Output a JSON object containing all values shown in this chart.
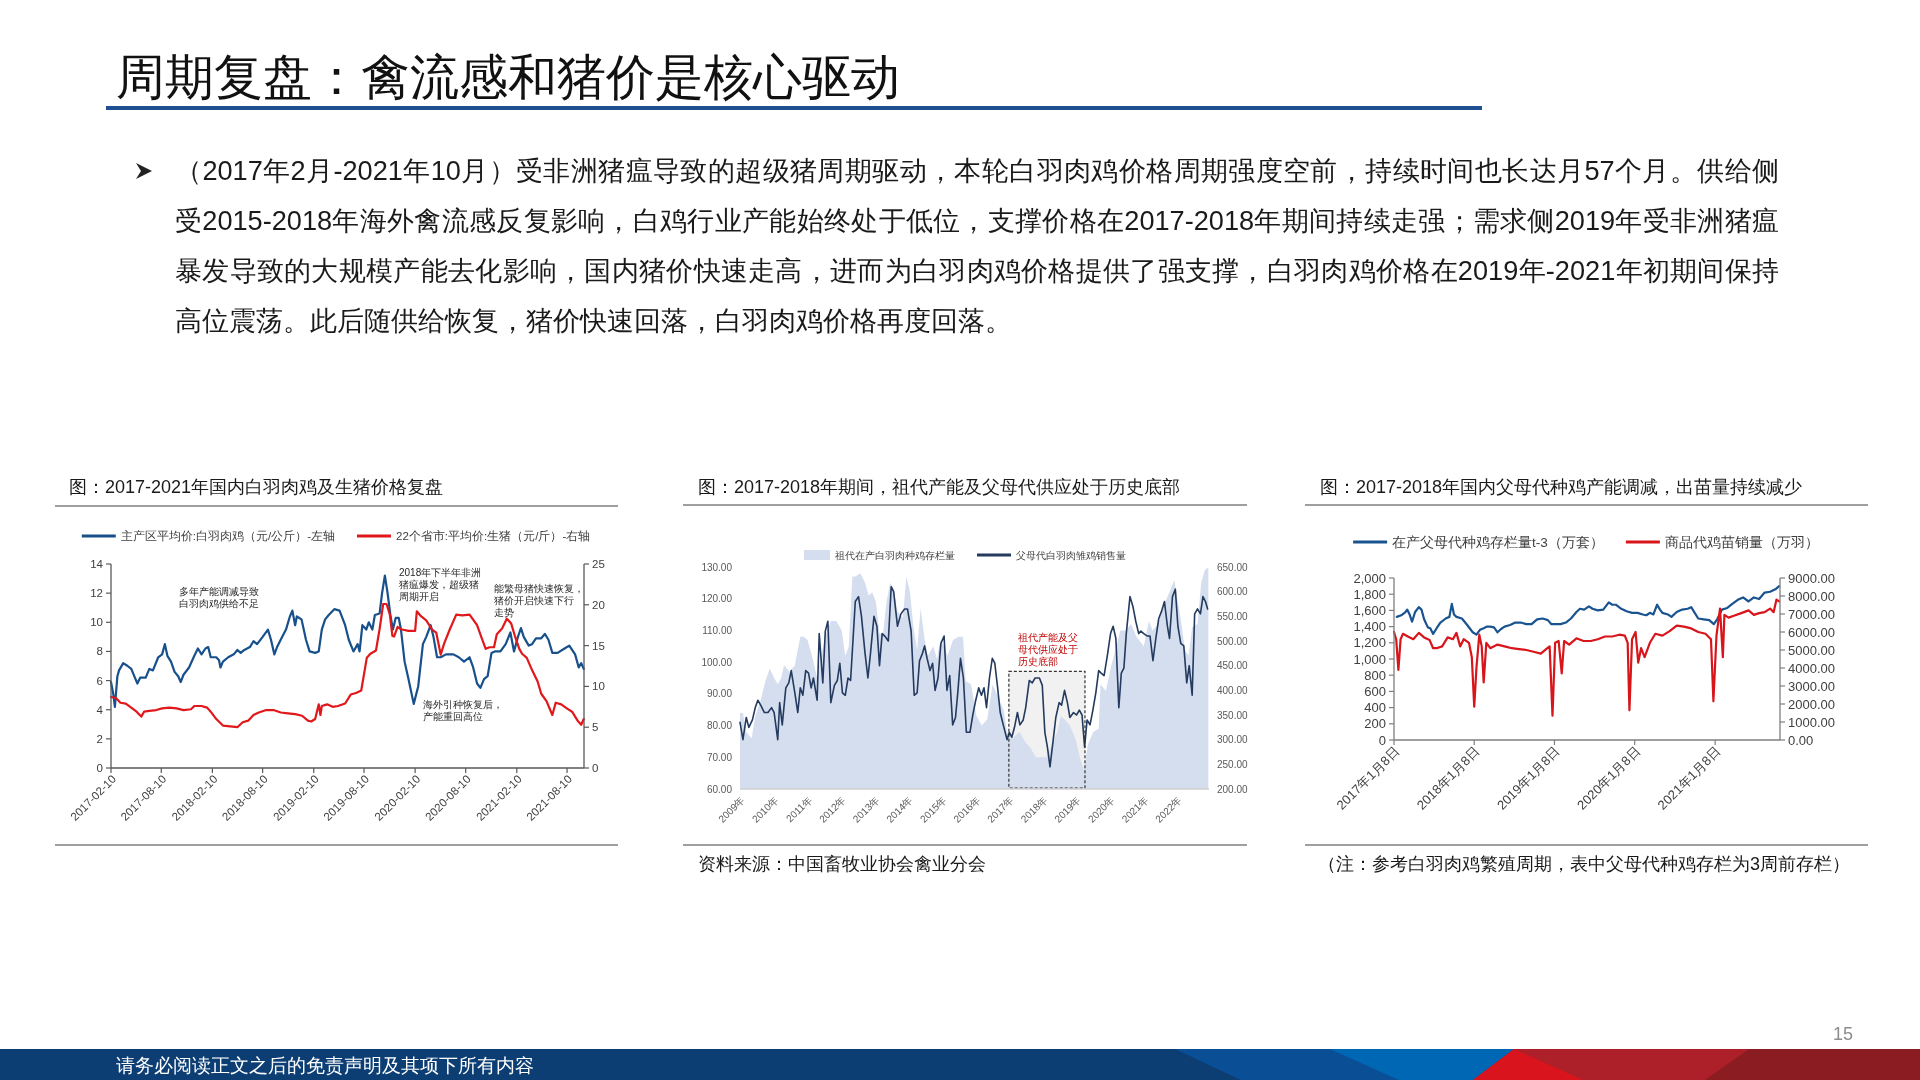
{
  "chart_data": [
    {
      "type": "other",
      "title": "周期复盘：禽流感和猪价是核心驱动",
      "annotations": [
        "（2017年2月-2021年10月）受非洲猪瘟导致的超级猪周期驱动，本轮白羽肉鸡价格周期强度空前，持续时间也长达月57个月。供给侧受2015-2018年海外禽流感反复影响，白鸡行业产能始终处于低位，支撑价格在2017-2018年期间持续走强；需求侧2019年受非洲猪瘟暴发导致的大规模产能去化影响，国内猪价快速走高，进而为白羽肉鸡价格提供了强支撑，白羽肉鸡价格在2019年-2021年初期间保持高位震荡。此后随供给恢复，猪价快速回落，白羽肉鸡价格再度回落。",
        "请务必阅读正文之后的免责声明及其项下所有内容",
        "15"
      ]
    },
    {
      "type": "line",
      "title": "图：2017-2021年国内白羽肉鸡及生猪价格复盘",
      "legend": "top",
      "xlim": [
        "2017-02-10",
        "2021-10-10"
      ],
      "xticks": [
        "2017-02-10",
        "2017-08-10",
        "2018-02-10",
        "2018-08-10",
        "2019-02-10",
        "2019-08-10",
        "2020-02-10",
        "2020-08-10",
        "2021-02-10",
        "2021-08-10"
      ],
      "ylim": [
        0,
        14
      ],
      "yticks": [
        0,
        2,
        4,
        6,
        8,
        10,
        12,
        14
      ],
      "y2lim": [
        0,
        25
      ],
      "y2ticks": [
        0,
        5,
        10,
        15,
        20,
        25
      ],
      "annotations": [
        "多年产能调减导致白羽肉鸡供给不足",
        "2018年下半年非洲猪瘟爆发，超级猪周期开启",
        "能繁母猪快速恢复，猪价开启快速下行走势",
        "海外引种恢复后，产能重回高位"
      ],
      "series": [
        {
          "name": "主产区平均价:白羽肉鸡（元/公斤）-左轴",
          "color": "#17508b",
          "x": [
            "2017-02-10",
            "2017-02-18",
            "2017-02-24",
            "2017-03-05",
            "2017-03-11",
            "2017-03-26",
            "2017-04-11",
            "2017-04-24",
            "2017-05-07",
            "2017-05-16",
            "2017-05-26",
            "2017-06-15",
            "2017-06-28",
            "2017-07-11",
            "2017-07-30",
            "2017-08-13",
            "2017-08-23",
            "2017-09-01",
            "2017-09-14",
            "2017-09-27",
            "2017-10-10",
            "2017-10-19",
            "2017-10-29",
            "2017-11-18",
            "2017-12-07",
            "2017-12-20",
            "2018-01-02",
            "2018-01-16",
            "2018-01-26",
            "2018-02-04",
            "2018-02-24",
            "2018-03-06",
            "2018-03-11",
            "2018-03-20",
            "2018-04-08",
            "2018-04-28",
            "2018-05-11",
            "2018-05-23",
            "2018-06-05",
            "2018-06-25",
            "2018-07-08",
            "2018-07-21",
            "2018-08-10",
            "2018-08-29",
            "2018-09-09",
            "2018-09-21",
            "2018-10-01",
            "2018-10-14",
            "2018-11-02",
            "2018-11-16",
            "2018-11-25",
            "2018-12-05",
            "2018-12-11",
            "2018-12-28",
            "2019-01-13",
            "2019-01-26",
            "2019-02-15",
            "2019-02-28",
            "2019-03-11",
            "2019-03-23",
            "2019-04-05",
            "2019-04-25",
            "2019-05-14",
            "2019-06-03",
            "2019-06-16",
            "2019-07-03",
            "2019-07-18",
            "2019-07-25",
            "2019-08-04",
            "2019-08-18",
            "2019-08-27",
            "2019-09-09",
            "2019-09-18",
            "2019-10-05",
            "2019-10-14",
            "2019-10-24",
            "2019-11-02",
            "2019-11-13",
            "2019-11-22",
            "2019-12-02",
            "2019-12-13",
            "2019-12-21",
            "2020-01-03",
            "2020-01-17",
            "2020-02-05",
            "2020-02-21",
            "2020-03-09",
            "2020-03-21",
            "2020-04-06",
            "2020-04-16",
            "2020-04-29",
            "2020-05-12",
            "2020-05-31",
            "2020-06-27",
            "2020-07-16",
            "2020-08-04",
            "2020-08-24",
            "2020-09-06",
            "2020-09-20",
            "2020-10-02",
            "2020-10-15",
            "2020-10-28",
            "2020-11-11",
            "2020-11-23",
            "2020-12-13",
            "2021-01-01",
            "2021-01-18",
            "2021-01-31",
            "2021-02-14",
            "2021-02-25",
            "2021-03-07",
            "2021-03-25",
            "2021-04-06",
            "2021-04-20",
            "2021-05-09",
            "2021-05-22",
            "2021-06-04",
            "2021-06-18",
            "2021-07-07",
            "2021-08-01",
            "2021-08-18",
            "2021-09-08",
            "2021-09-21",
            "2021-09-30",
            "2021-10-09"
          ],
          "values": [
            5.9,
            5.1,
            4.2,
            6.3,
            6.7,
            7.2,
            7.0,
            6.8,
            6.2,
            5.8,
            6.2,
            6.2,
            6.8,
            6.7,
            7.6,
            7.8,
            8.5,
            7.7,
            7.3,
            6.6,
            6.3,
            5.9,
            6.4,
            6.9,
            7.7,
            8.2,
            7.8,
            8.2,
            8.3,
            7.6,
            7.6,
            7.4,
            6.9,
            7.3,
            7.6,
            7.8,
            8.1,
            7.9,
            8.1,
            8.3,
            8.7,
            8.5,
            9.0,
            9.5,
            8.8,
            7.8,
            8.3,
            8.8,
            9.5,
            10.4,
            10.8,
            9.8,
            10.4,
            10.2,
            8.8,
            8.0,
            7.9,
            8.0,
            9.5,
            10.2,
            10.5,
            10.9,
            10.8,
            9.8,
            8.8,
            8.0,
            8.5,
            8.0,
            9.8,
            9.5,
            10.0,
            9.5,
            10.5,
            10.6,
            12.0,
            13.2,
            12.1,
            10.5,
            9.5,
            10.3,
            10.3,
            9.5,
            7.3,
            6.1,
            4.4,
            5.6,
            8.5,
            9.0,
            9.8,
            9.0,
            7.6,
            7.6,
            7.8,
            7.8,
            7.6,
            7.3,
            7.6,
            6.9,
            5.8,
            5.5,
            6.1,
            6.3,
            7.9,
            8.0,
            8.0,
            8.5,
            9.3,
            8.0,
            9.0,
            9.6,
            9.0,
            8.4,
            8.5,
            8.9,
            8.9,
            9.2,
            8.8,
            7.9,
            7.9,
            8.2,
            8.4,
            7.8,
            6.9,
            7.2,
            6.8
          ]
        },
        {
          "name": "22个省市:平均价:生猪（元/斤）-右轴",
          "color": "#e0181b",
          "axis": "y2",
          "x": [
            "2017-02-10",
            "2017-02-27",
            "2017-03-16",
            "2017-04-04",
            "2017-04-24",
            "2017-05-13",
            "2017-05-30",
            "2017-06-09",
            "2017-06-28",
            "2017-07-23",
            "2017-08-13",
            "2017-09-08",
            "2017-10-04",
            "2017-10-29",
            "2017-11-25",
            "2017-12-07",
            "2018-01-02",
            "2018-01-22",
            "2018-02-04",
            "2018-02-24",
            "2018-03-20",
            "2018-04-15",
            "2018-05-11",
            "2018-05-30",
            "2018-06-19",
            "2018-07-08",
            "2018-07-27",
            "2018-08-23",
            "2018-09-18",
            "2018-10-14",
            "2018-11-09",
            "2018-12-05",
            "2018-12-30",
            "2019-01-20",
            "2019-02-01",
            "2019-02-15",
            "2019-02-28",
            "2019-03-06",
            "2019-03-11",
            "2019-03-30",
            "2019-04-19",
            "2019-05-08",
            "2019-06-03",
            "2019-06-23",
            "2019-07-12",
            "2019-07-31",
            "2019-08-20",
            "2019-09-02",
            "2019-09-22",
            "2019-10-05",
            "2019-10-18",
            "2019-10-30",
            "2019-11-11",
            "2019-11-20",
            "2019-11-26",
            "2019-12-09",
            "2019-12-21",
            "2020-01-17",
            "2020-02-10",
            "2020-02-16",
            "2020-03-02",
            "2020-03-21",
            "2020-04-10",
            "2020-04-26",
            "2020-05-12",
            "2020-05-25",
            "2020-06-14",
            "2020-07-07",
            "2020-07-29",
            "2020-08-24",
            "2020-09-20",
            "2020-10-09",
            "2020-10-21",
            "2020-11-04",
            "2020-11-20",
            "2020-11-30",
            "2020-12-19",
            "2021-01-05",
            "2021-01-21",
            "2021-02-03",
            "2021-02-19",
            "2021-03-01",
            "2021-03-18",
            "2021-04-06",
            "2021-04-26",
            "2021-05-09",
            "2021-05-28",
            "2021-06-18",
            "2021-06-30",
            "2021-07-20",
            "2021-08-09",
            "2021-08-28",
            "2021-09-17",
            "2021-09-30",
            "2021-10-09"
          ],
          "values": [
            8.7,
            8.6,
            8.0,
            7.9,
            7.4,
            6.9,
            6.3,
            6.9,
            7.0,
            7.1,
            7.3,
            7.4,
            7.3,
            7.1,
            7.2,
            7.6,
            7.6,
            7.4,
            6.9,
            6.0,
            5.2,
            5.1,
            5.0,
            5.6,
            5.8,
            6.5,
            6.8,
            7.1,
            7.1,
            6.8,
            6.7,
            6.6,
            6.4,
            5.8,
            5.7,
            6.0,
            7.8,
            6.5,
            7.6,
            7.8,
            7.5,
            7.6,
            7.9,
            9.0,
            9.2,
            9.5,
            13.5,
            14.0,
            14.4,
            17.0,
            20.1,
            20.1,
            18.8,
            16.2,
            16.1,
            17.3,
            17.0,
            16.8,
            16.8,
            19.2,
            18.6,
            18.1,
            17.0,
            16.6,
            13.9,
            15.3,
            17.0,
            18.8,
            18.7,
            18.8,
            17.5,
            15.7,
            14.6,
            14.8,
            14.8,
            16.4,
            17.1,
            18.3,
            17.7,
            16.2,
            14.6,
            14.0,
            13.5,
            12.0,
            10.6,
            9.1,
            8.2,
            6.5,
            8.0,
            7.8,
            7.3,
            6.9,
            5.8,
            5.3,
            6.0
          ]
        }
      ]
    },
    {
      "type": "line",
      "title": "图：2017-2018年期间，祖代产能及父母代供应处于历史底部",
      "legend": "top",
      "xlim": [
        "2009",
        "2022-12-16"
      ],
      "xticks": [
        {
          "value": "2009",
          "label": "2009年"
        },
        {
          "value": "2010",
          "label": "2010年"
        },
        {
          "value": "2011",
          "label": "2011年"
        },
        {
          "value": "2012",
          "label": "2012年"
        },
        {
          "value": "2013",
          "label": "2013年"
        },
        {
          "value": "2014",
          "label": "2014年"
        },
        {
          "value": "2015",
          "label": "2015年"
        },
        {
          "value": "2016",
          "label": "2016年"
        },
        {
          "value": "2017",
          "label": "2017年"
        },
        {
          "value": "2018",
          "label": "2018年"
        },
        {
          "value": "2019",
          "label": "2019年"
        },
        {
          "value": "2020",
          "label": "2020年"
        },
        {
          "value": "2021",
          "label": "2021年"
        },
        {
          "value": "2022",
          "label": "2022年"
        }
      ],
      "ylim": [
        60,
        130
      ],
      "yticks": [
        {
          "value": 60,
          "label": "60.00"
        },
        {
          "value": 70,
          "label": "70.00"
        },
        {
          "value": 80,
          "label": "80.00"
        },
        {
          "value": 90,
          "label": "90.00"
        },
        {
          "value": 100,
          "label": "100.00"
        },
        {
          "value": 110,
          "label": "110.00"
        },
        {
          "value": 120,
          "label": "120.00"
        },
        {
          "value": 130,
          "label": "130.00"
        }
      ],
      "y2lim": [
        200,
        650
      ],
      "y2ticks": [
        {
          "value": 200,
          "label": "200.00"
        },
        {
          "value": 250,
          "label": "250.00"
        },
        {
          "value": 300,
          "label": "300.00"
        },
        {
          "value": 350,
          "label": "350.00"
        },
        {
          "value": 400,
          "label": "400.00"
        },
        {
          "value": 450,
          "label": "450.00"
        },
        {
          "value": 500,
          "label": "500.00"
        },
        {
          "value": 550,
          "label": "550.00"
        },
        {
          "value": 600,
          "label": "600.00"
        },
        {
          "value": 650,
          "label": "650.00"
        }
      ],
      "bands": [
        {
          "axis": "x",
          "from": "2017-01-01",
          "to": "2019-04-08",
          "label": "祖代产能及父母代供应处于历史底部",
          "color": "#333333"
        }
      ],
      "annotations": [
        "资料来源：中国畜牧业协会禽业分会"
      ],
      "series": [
        {
          "name": "祖代在产白羽肉种鸡存栏量",
          "type": "area",
          "color": "#d5deef",
          "x": [
            "2009-01-01",
            "2009-02-02",
            "2009-03-10",
            "2009-05-08",
            "2009-06-16",
            "2009-08-14",
            "2009-10-04",
            "2009-11-20",
            "2010-01-07",
            "2010-02-15",
            "2010-03-24",
            "2010-04-25",
            "2010-06-23",
            "2010-08-20",
            "2010-10-18",
            "2010-11-27",
            "2011-01-05",
            "2011-03-03",
            "2011-04-20",
            "2011-05-20",
            "2011-07-17",
            "2011-09-15",
            "2011-11-13",
            "2012-01-11",
            "2012-02-19",
            "2012-03-28",
            "2012-05-06",
            "2012-06-07",
            "2012-08-01",
            "2012-09-21",
            "2012-10-30",
            "2012-12-08",
            "2013-01-17",
            "2013-02-25",
            "2013-04-04",
            "2013-05-12",
            "2013-06-21",
            "2013-07-29",
            "2013-09-08",
            "2013-11-06",
            "2013-12-14",
            "2014-01-23",
            "2014-03-01",
            "2014-04-10",
            "2014-05-18",
            "2014-06-26",
            "2014-08-05",
            "2014-10-03",
            "2014-11-11",
            "2014-12-20",
            "2015-01-28",
            "2015-03-07",
            "2015-05-05",
            "2015-07-02",
            "2015-08-22",
            "2015-09-19",
            "2015-11-17",
            "2016-01-15",
            "2016-03-13",
            "2016-05-11",
            "2016-07-08",
            "2016-09-06",
            "2016-11-04",
            "2016-12-12",
            "2017-02-10",
            "2017-04-27",
            "2017-06-25",
            "2017-08-23",
            "2017-10-21",
            "2017-12-18",
            "2018-02-15",
            "2018-04-13",
            "2018-06-11",
            "2018-07-20",
            "2018-08-29",
            "2018-10-26",
            "2018-12-24",
            "2019-02-21",
            "2019-03-30",
            "2019-05-09",
            "2019-07-07",
            "2019-09-04",
            "2019-09-24",
            "2019-11-21",
            "2020-01-19",
            "2020-03-17",
            "2020-04-25",
            "2020-06-23",
            "2020-08-21",
            "2020-10-19",
            "2021-01-06",
            "2021-03-03",
            "2021-04-12",
            "2021-06-10",
            "2021-08-27",
            "2021-10-25",
            "2021-12-03",
            "2022-01-12",
            "2022-02-20",
            "2022-03-29",
            "2022-05-07",
            "2022-06-16",
            "2022-08-13",
            "2022-09-22",
            "2022-10-31",
            "2022-12-09"
          ],
          "values": [
            84,
            84,
            78,
            76,
            83,
            88,
            94,
            98,
            95,
            93,
            95,
            99,
            97,
            99,
            108,
            108,
            107,
            101,
            95,
            100,
            108,
            113,
            113,
            110,
            102,
            105,
            127,
            127,
            128,
            125,
            121,
            122,
            119,
            109,
            109,
            119,
            125,
            123,
            116,
            114,
            127,
            122,
            111,
            104,
            117,
            108,
            102,
            105,
            101,
            107,
            105,
            102,
            107,
            108,
            108,
            94,
            93,
            83,
            80,
            82,
            93,
            89,
            85,
            78,
            76,
            78,
            75,
            73,
            70,
            70,
            70,
            74,
            78,
            83,
            82,
            80,
            76,
            69,
            66,
            74,
            78,
            79,
            93,
            91,
            99,
            105,
            110,
            110,
            112,
            108,
            105,
            113,
            110,
            112,
            119,
            123,
            126,
            119,
            112,
            104,
            102,
            111,
            112,
            125,
            129,
            130
          ]
        },
        {
          "name": "父母代白羽肉雏鸡销售量",
          "type": "line",
          "color": "#243a5e",
          "axis": "y2",
          "x": [
            "2009-01-01",
            "2009-02-02",
            "2009-03-10",
            "2009-04-07",
            "2009-05-16",
            "2009-06-16",
            "2009-07-14",
            "2009-08-14",
            "2009-09-23",
            "2009-11-01",
            "2009-12-10",
            "2010-01-07",
            "2010-02-15",
            "2010-03-08",
            "2010-04-05",
            "2010-05-14",
            "2010-06-15",
            "2010-07-12",
            "2010-08-20",
            "2010-09-21",
            "2010-10-18",
            "2010-11-15",
            "2010-12-16",
            "2011-01-16",
            "2011-02-13",
            "2011-03-10",
            "2011-04-19",
            "2011-05-12",
            "2011-06-20",
            "2011-07-17",
            "2011-08-14",
            "2011-09-15",
            "2011-10-24",
            "2011-11-25",
            "2011-12-22",
            "2012-01-19",
            "2012-02-19",
            "2012-03-20",
            "2012-04-17",
            "2012-05-14",
            "2012-06-07",
            "2012-07-12",
            "2012-08-13",
            "2012-09-21",
            "2012-10-22",
            "2012-11-19",
            "2012-12-27",
            "2013-01-28",
            "2013-02-25",
            "2013-03-26",
            "2013-04-23",
            "2013-06-01",
            "2013-07-02",
            "2013-07-29",
            "2013-09-08",
            "2013-10-16",
            "2013-11-25",
            "2013-12-26",
            "2014-02-04",
            "2014-03-09",
            "2014-04-10",
            "2014-05-06",
            "2014-06-07",
            "2014-06-30",
            "2014-07-27",
            "2014-08-28",
            "2014-09-25",
            "2014-10-22",
            "2014-11-23",
            "2014-12-24",
            "2015-01-28",
            "2015-02-28",
            "2015-03-30",
            "2015-05-01",
            "2015-06-01",
            "2015-06-28",
            "2015-07-25",
            "2015-08-26",
            "2015-09-27",
            "2015-11-05",
            "2015-12-06",
            "2016-01-07",
            "2016-02-08",
            "2016-03-09",
            "2016-04-06",
            "2016-05-03",
            "2016-06-04",
            "2016-07-05",
            "2016-08-01",
            "2016-08-29",
            "2016-09-29",
            "2016-11-08",
            "2016-12-12",
            "2017-01-06",
            "2017-02-02",
            "2017-03-03",
            "2017-04-04",
            "2017-05-01",
            "2017-06-06",
            "2017-07-03",
            "2017-08-11",
            "2017-09-12",
            "2017-10-13",
            "2017-11-29",
            "2017-12-30",
            "2018-01-27",
            "2018-02-24",
            "2018-03-24",
            "2018-04-25",
            "2018-05-26",
            "2018-07-01",
            "2018-07-28",
            "2018-08-29",
            "2018-09-29",
            "2018-10-26",
            "2018-12-05",
            "2019-01-06",
            "2019-02-06",
            "2019-03-07",
            "2019-04-04",
            "2019-05-01",
            "2019-06-02",
            "2019-07-03",
            "2019-08-04",
            "2019-09-04",
            "2019-10-01",
            "2019-11-02",
            "2019-12-11",
            "2020-01-11",
            "2020-02-08",
            "2020-03-09",
            "2020-04-10",
            "2020-05-07",
            "2020-06-04",
            "2020-06-30",
            "2020-08-09",
            "2020-09-10",
            "2020-10-11",
            "2020-11-12",
            "2020-12-05",
            "2021-01-06",
            "2021-02-14",
            "2021-03-15",
            "2021-04-16",
            "2021-05-17",
            "2021-06-17",
            "2021-07-18",
            "2021-08-19",
            "2021-09-20",
            "2021-10-13",
            "2021-11-14",
            "2021-12-15",
            "2022-01-12",
            "2022-02-12",
            "2022-03-17",
            "2022-04-18",
            "2022-05-15",
            "2022-06-16",
            "2022-07-13",
            "2022-08-13",
            "2022-09-14",
            "2022-10-11",
            "2022-11-08",
            "2022-12-01"
          ],
          "values": [
            335,
            300,
            345,
            325,
            340,
            365,
            380,
            370,
            355,
            355,
            365,
            355,
            300,
            375,
            330,
            405,
            415,
            440,
            395,
            355,
            405,
            390,
            440,
            435,
            405,
            425,
            380,
            515,
            415,
            520,
            540,
            375,
            410,
            420,
            455,
            395,
            390,
            425,
            420,
            505,
            580,
            590,
            550,
            475,
            425,
            475,
            550,
            530,
            450,
            515,
            510,
            500,
            610,
            600,
            530,
            555,
            565,
            565,
            520,
            390,
            395,
            460,
            475,
            490,
            465,
            440,
            455,
            400,
            425,
            495,
            510,
            400,
            430,
            330,
            345,
            400,
            465,
            425,
            315,
            315,
            350,
            380,
            405,
            390,
            405,
            365,
            425,
            465,
            455,
            410,
            355,
            325,
            300,
            315,
            305,
            325,
            355,
            330,
            340,
            365,
            420,
            415,
            425,
            425,
            410,
            315,
            285,
            245,
            295,
            345,
            375,
            370,
            400,
            375,
            345,
            355,
            350,
            360,
            350,
            285,
            340,
            330,
            360,
            395,
            440,
            435,
            430,
            475,
            515,
            530,
            505,
            365,
            435,
            445,
            515,
            590,
            570,
            540,
            515,
            520,
            515,
            510,
            510,
            460,
            505,
            545,
            560,
            580,
            530,
            505,
            590,
            605,
            530,
            495,
            490,
            415,
            450,
            390,
            555,
            565,
            555,
            590,
            580,
            565
          ]
        }
      ]
    },
    {
      "type": "line",
      "title": "图：2017-2018年国内父母代种鸡产能调减，出苗量持续减少",
      "legend": "top",
      "xlim": [
        "2017-01-08",
        "2021-10-30"
      ],
      "xticks": [
        {
          "value": "2017-01-08",
          "label": "2017年1月8日"
        },
        {
          "value": "2018-01-08",
          "label": "2018年1月8日"
        },
        {
          "value": "2019-01-08",
          "label": "2019年1月8日"
        },
        {
          "value": "2020-01-08",
          "label": "2020年1月8日"
        },
        {
          "value": "2021-01-08",
          "label": "2021年1月8日"
        }
      ],
      "ylim": [
        0,
        2000
      ],
      "yticks": [
        0,
        200,
        400,
        600,
        800,
        {
          "value": 1000,
          "label": "1,000"
        },
        {
          "value": 1200,
          "label": "1,200"
        },
        {
          "value": 1400,
          "label": "1,400"
        },
        {
          "value": 1600,
          "label": "1,600"
        },
        {
          "value": 1800,
          "label": "1,800"
        },
        {
          "value": 2000,
          "label": "2,000"
        }
      ],
      "y2lim": [
        0,
        9000
      ],
      "y2ticks": [
        {
          "value": 0,
          "label": "0.00"
        },
        {
          "value": 1000,
          "label": "1000.00"
        },
        {
          "value": 2000,
          "label": "2000.00"
        },
        {
          "value": 3000,
          "label": "3000.00"
        },
        {
          "value": 4000,
          "label": "4000.00"
        },
        {
          "value": 5000,
          "label": "5000.00"
        },
        {
          "value": 6000,
          "label": "6000.00"
        },
        {
          "value": 7000,
          "label": "7000.00"
        },
        {
          "value": 8000,
          "label": "8000.00"
        },
        {
          "value": 9000,
          "label": "9000.00"
        }
      ],
      "annotations": [
        "（注：参考白羽肉鸡繁殖周期，表中父母代种鸡存栏为3周前存栏）"
      ],
      "series": [
        {
          "name": "在产父母代种鸡存栏量t-3（万套）",
          "color": "#1a5490",
          "x": [
            "2017-01-21",
            "2017-02-10",
            "2017-03-01",
            "2017-03-09",
            "2017-03-20",
            "2017-03-31",
            "2017-04-14",
            "2017-05-01",
            "2017-05-13",
            "2017-05-25",
            "2017-06-11",
            "2017-06-22",
            "2017-07-05",
            "2017-07-21",
            "2017-08-07",
            "2017-08-31",
            "2017-09-17",
            "2017-09-28",
            "2017-10-08",
            "2017-10-19",
            "2017-11-13",
            "2017-12-07",
            "2018-01-01",
            "2018-01-18",
            "2018-02-03",
            "2018-02-20",
            "2018-03-07",
            "2018-03-22",
            "2018-04-08",
            "2018-04-24",
            "2018-05-10",
            "2018-05-26",
            "2018-06-20",
            "2018-07-14",
            "2018-08-08",
            "2018-09-02",
            "2018-09-26",
            "2018-10-21",
            "2018-11-15",
            "2018-12-09",
            "2018-12-25",
            "2019-01-11",
            "2019-02-05",
            "2019-03-01",
            "2019-03-24",
            "2019-04-18",
            "2019-05-04",
            "2019-05-23",
            "2019-06-14",
            "2019-06-30",
            "2019-07-24",
            "2019-08-18",
            "2019-09-12",
            "2019-09-28",
            "2019-10-14",
            "2019-11-08",
            "2019-12-02",
            "2019-12-27",
            "2020-01-21",
            "2020-02-14",
            "2020-03-01",
            "2020-03-17",
            "2020-04-02",
            "2020-04-19",
            "2020-05-02",
            "2020-05-13",
            "2020-06-07",
            "2020-06-23",
            "2020-07-17",
            "2020-08-11",
            "2020-09-05",
            "2020-09-21",
            "2020-10-07",
            "2020-10-23",
            "2020-11-17",
            "2020-12-12",
            "2021-01-02",
            "2021-01-17",
            "2021-02-08",
            "2021-03-04",
            "2021-03-27",
            "2021-04-21",
            "2021-05-15",
            "2021-06-09",
            "2021-07-03",
            "2021-07-27",
            "2021-08-21",
            "2021-09-15",
            "2021-10-09",
            "2021-10-26"
          ],
          "values": [
            1520,
            1540,
            1580,
            1610,
            1550,
            1460,
            1580,
            1640,
            1610,
            1490,
            1390,
            1380,
            1310,
            1380,
            1450,
            1500,
            1520,
            1680,
            1550,
            1520,
            1500,
            1420,
            1330,
            1300,
            1360,
            1380,
            1400,
            1400,
            1390,
            1330,
            1370,
            1400,
            1420,
            1450,
            1450,
            1430,
            1430,
            1490,
            1500,
            1480,
            1430,
            1430,
            1430,
            1450,
            1500,
            1580,
            1620,
            1610,
            1650,
            1620,
            1600,
            1610,
            1700,
            1670,
            1670,
            1620,
            1590,
            1570,
            1570,
            1550,
            1540,
            1570,
            1550,
            1670,
            1610,
            1570,
            1550,
            1520,
            1580,
            1610,
            1620,
            1640,
            1570,
            1500,
            1490,
            1480,
            1430,
            1490,
            1610,
            1630,
            1680,
            1730,
            1760,
            1710,
            1760,
            1740,
            1820,
            1830,
            1860,
            1900
          ]
        },
        {
          "name": "商品代鸡苗销量（万羽）",
          "color": "#d7151b",
          "axis": "y2",
          "x": [
            "2017-01-08",
            "2017-01-18",
            "2017-01-28",
            "2017-02-07",
            "2017-02-18",
            "2017-03-12",
            "2017-04-06",
            "2017-05-01",
            "2017-05-25",
            "2017-06-19",
            "2017-07-05",
            "2017-07-21",
            "2017-08-15",
            "2017-09-09",
            "2017-10-03",
            "2017-10-19",
            "2017-11-05",
            "2017-11-21",
            "2017-12-15",
            "2017-12-28",
            "2018-01-08",
            "2018-01-18",
            "2018-01-31",
            "2018-02-11",
            "2018-02-20",
            "2018-03-04",
            "2018-03-22",
            "2018-04-24",
            "2018-05-26",
            "2018-06-28",
            "2018-07-31",
            "2018-09-02",
            "2018-10-05",
            "2018-11-07",
            "2018-12-01",
            "2018-12-17",
            "2018-12-30",
            "2019-01-11",
            "2019-01-27",
            "2019-02-10",
            "2019-02-21",
            "2019-03-16",
            "2019-04-18",
            "2019-05-20",
            "2019-06-22",
            "2019-07-24",
            "2019-08-26",
            "2019-09-28",
            "2019-10-30",
            "2019-11-24",
            "2019-12-07",
            "2019-12-15",
            "2019-12-27",
            "2020-01-12",
            "2020-01-24",
            "2020-02-06",
            "2020-02-22",
            "2020-03-17",
            "2020-04-11",
            "2020-05-13",
            "2020-06-15",
            "2020-07-17",
            "2020-08-19",
            "2020-09-21",
            "2020-10-23",
            "2020-11-25",
            "2020-12-20",
            "2020-12-31",
            "2021-01-14",
            "2021-01-30",
            "2021-02-12",
            "2021-02-19",
            "2021-03-10",
            "2021-04-03",
            "2021-05-07",
            "2021-06-09",
            "2021-07-03",
            "2021-07-27",
            "2021-08-21",
            "2021-09-15",
            "2021-10-01",
            "2021-10-14",
            "2021-10-26"
          ],
          "values": [
            6000,
            5600,
            3900,
            5600,
            5900,
            5750,
            5600,
            5950,
            5700,
            5550,
            5100,
            5100,
            5200,
            5700,
            5600,
            5950,
            5200,
            5600,
            5400,
            4600,
            1850,
            4000,
            5850,
            5200,
            3200,
            5400,
            5100,
            5300,
            5200,
            5100,
            5050,
            5000,
            4900,
            4800,
            5050,
            5200,
            1350,
            5400,
            5500,
            3700,
            5500,
            5300,
            5650,
            5500,
            5500,
            5600,
            5750,
            5750,
            5850,
            5800,
            5400,
            1650,
            5600,
            6000,
            4300,
            5100,
            4600,
            5400,
            5900,
            5800,
            6050,
            6350,
            6300,
            6200,
            6000,
            5900,
            5600,
            2150,
            5800,
            7300,
            4600,
            6950,
            6800,
            6900,
            7050,
            7200,
            6950,
            7050,
            7100,
            7300,
            7100,
            7800,
            7700
          ]
        }
      ]
    }
  ]
}
